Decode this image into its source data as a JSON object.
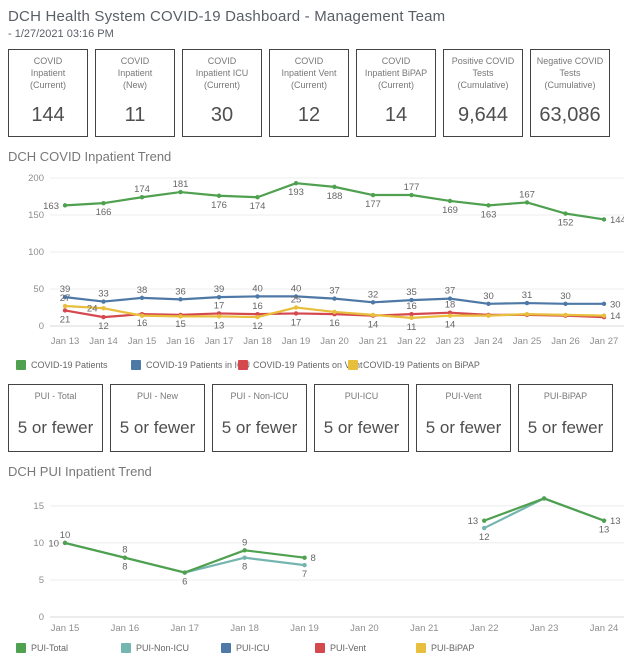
{
  "header": {
    "title": "DCH Health System COVID-19 Dashboard - Management Team",
    "subtitle": "- 1/27/2021 03:16 PM"
  },
  "sections": {
    "covid_trend": "DCH COVID Inpatient Trend",
    "pui_trend": "DCH PUI Inpatient Trend"
  },
  "kpi_cards": [
    {
      "label_lines": [
        "COVID",
        "Inpatient",
        "(Current)"
      ],
      "value": "144"
    },
    {
      "label_lines": [
        "COVID",
        "Inpatient",
        "(New)"
      ],
      "value": "11"
    },
    {
      "label_lines": [
        "COVID",
        "Inpatient ICU",
        "(Current)"
      ],
      "value": "30"
    },
    {
      "label_lines": [
        "COVID",
        "Inpatient Vent",
        "(Current)"
      ],
      "value": "12"
    },
    {
      "label_lines": [
        "COVID",
        "Inpatient BiPAP",
        "(Current)"
      ],
      "value": "14"
    },
    {
      "label_lines": [
        "Positive COVID",
        "Tests",
        "(Cumulative)"
      ],
      "value": "9,644"
    },
    {
      "label_lines": [
        "Negative COVID",
        "Tests",
        "(Cumulative)"
      ],
      "value": "63,086"
    }
  ],
  "pui_cards": [
    {
      "label_lines": [
        "PUI - Total"
      ],
      "value": "5 or fewer"
    },
    {
      "label_lines": [
        "PUI - New"
      ],
      "value": "5 or fewer"
    },
    {
      "label_lines": [
        "PUI - Non-ICU"
      ],
      "value": "5 or fewer"
    },
    {
      "label_lines": [
        "PUI-ICU"
      ],
      "value": "5 or fewer"
    },
    {
      "label_lines": [
        "PUI-Vent"
      ],
      "value": "5 or fewer"
    },
    {
      "label_lines": [
        "PUI-BiPAP"
      ],
      "value": "5 or fewer"
    }
  ],
  "chart_data": [
    {
      "id": "covid-inpatient-trend",
      "type": "line",
      "title": "DCH COVID Inpatient Trend",
      "x": [
        "Jan 13",
        "Jan 14",
        "Jan 15",
        "Jan 16",
        "Jan 17",
        "Jan 18",
        "Jan 19",
        "Jan 20",
        "Jan 21",
        "Jan 22",
        "Jan 23",
        "Jan 24",
        "Jan 25",
        "Jan 26",
        "Jan 27"
      ],
      "ylim": [
        0,
        200
      ],
      "yticks": [
        0,
        50,
        100,
        150,
        200
      ],
      "ymax": 200,
      "grid": true,
      "legend_position": "bottom",
      "series": [
        {
          "name": "COVID-19 Patients",
          "color": "#4fa04f",
          "values": [
            163,
            166,
            174,
            181,
            176,
            174,
            193,
            188,
            177,
            177,
            169,
            163,
            167,
            152,
            144
          ],
          "labels": [
            "163",
            "166",
            "174",
            "181",
            "176",
            "174",
            "193",
            "188",
            "177",
            "177",
            "169",
            "163",
            "167",
            "152",
            "144"
          ],
          "label_pos": [
            "left",
            "below",
            "above",
            "above",
            "below",
            "below",
            "below",
            "below",
            "below",
            "above",
            "below",
            "below",
            "above",
            "below",
            "right"
          ]
        },
        {
          "name": "COVID-19 Patients in ICU",
          "color": "#4e79a7",
          "values": [
            39,
            33,
            38,
            36,
            39,
            40,
            40,
            37,
            32,
            35,
            37,
            30,
            31,
            30,
            30
          ],
          "labels": [
            "39",
            "33",
            "38",
            "36",
            "39",
            "40",
            "40",
            "37",
            "32",
            "35",
            "37",
            "30",
            "31",
            "30",
            "30"
          ],
          "label_pos": [
            "above",
            "above",
            "above",
            "above",
            "above",
            "above",
            "above",
            "above",
            "above",
            "above",
            "above",
            "above",
            "above",
            "above",
            "right"
          ]
        },
        {
          "name": "COVID-19 Patients on Vent",
          "color": "#d4484e",
          "values": [
            21,
            12,
            16,
            15,
            17,
            16,
            17,
            16,
            14,
            16,
            18,
            15,
            15,
            14,
            12
          ],
          "labels": [
            "21",
            "12",
            "16",
            "15",
            "17",
            "16",
            "17",
            "16",
            "14",
            "16",
            "18",
            null,
            null,
            null,
            null
          ],
          "label_pos": [
            "below",
            "below",
            "below",
            "below",
            "above",
            "above",
            "below",
            "below",
            "below",
            "above",
            "above",
            null,
            null,
            null,
            null
          ]
        },
        {
          "name": "COVID-19 Patients on BiPAP",
          "color": "#e8bf3c",
          "values": [
            27,
            24,
            14,
            13,
            13,
            12,
            25,
            19,
            15,
            11,
            14,
            14,
            16,
            15,
            14
          ],
          "labels": [
            "27",
            "24",
            null,
            null,
            "13",
            "12",
            "25",
            null,
            null,
            "11",
            "14",
            null,
            null,
            null,
            "14"
          ],
          "label_pos": [
            "above",
            "left",
            null,
            null,
            "below",
            "below",
            "above",
            null,
            null,
            "below",
            "below",
            null,
            null,
            null,
            "right"
          ]
        }
      ]
    },
    {
      "id": "pui-inpatient-trend",
      "type": "line",
      "title": "DCH PUI Inpatient Trend",
      "x": [
        "Jan 15",
        "Jan 16",
        "Jan 17",
        "Jan 18",
        "Jan 19",
        "Jan 20",
        "Jan 21",
        "Jan 22",
        "Jan 23",
        "Jan 24"
      ],
      "ylim": [
        0,
        17
      ],
      "yticks": [
        0,
        5,
        10,
        15
      ],
      "ymax": 17,
      "grid": true,
      "legend_position": "bottom",
      "series": [
        {
          "name": "PUI-Total",
          "color": "#4fa04f",
          "values": [
            10,
            8,
            6,
            9,
            8,
            null,
            null,
            13,
            16,
            13
          ],
          "labels": [
            "10",
            "8",
            "6",
            "9",
            "8",
            null,
            null,
            "13",
            null,
            "13"
          ],
          "label_pos": [
            "left",
            "above",
            "below",
            "above",
            "right",
            null,
            null,
            "left",
            null,
            "right"
          ]
        },
        {
          "name": "PUI-Non-ICU",
          "color": "#74b5b0",
          "values": [
            10,
            8,
            6,
            8,
            7,
            null,
            null,
            12,
            16,
            13
          ],
          "labels": [
            "10",
            "8",
            null,
            "8",
            "7",
            null,
            null,
            "12",
            null,
            "13"
          ],
          "label_pos": [
            "above",
            "below",
            null,
            "below",
            "below",
            null,
            null,
            "below",
            null,
            "below"
          ]
        },
        {
          "name": "PUI-ICU",
          "color": "#4e79a7",
          "values": null
        },
        {
          "name": "PUI-Vent",
          "color": "#d4484e",
          "values": null
        },
        {
          "name": "PUI-BiPAP",
          "color": "#e8bf3c",
          "values": null
        }
      ]
    }
  ]
}
